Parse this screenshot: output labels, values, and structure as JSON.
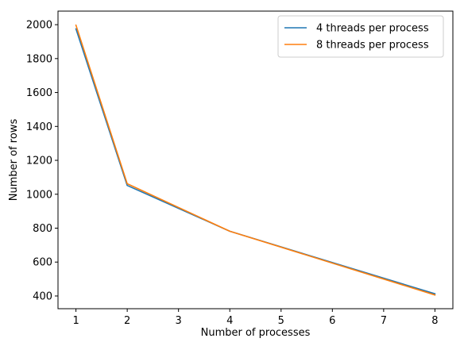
{
  "chart_data": {
    "type": "line",
    "xlabel": "Number of processes",
    "ylabel": "Number of rows",
    "xlim": [
      0.65,
      8.35
    ],
    "ylim": [
      325,
      2080
    ],
    "xticks": [
      1,
      2,
      3,
      4,
      5,
      6,
      7,
      8
    ],
    "yticks": [
      400,
      600,
      800,
      1000,
      1200,
      1400,
      1600,
      1800,
      2000
    ],
    "grid": false,
    "legend_position": "top-right",
    "series": [
      {
        "name": "4 threads per process",
        "color": "#1f77b4",
        "x": [
          1,
          2,
          4,
          8
        ],
        "y": [
          1975,
          1052,
          782,
          413
        ]
      },
      {
        "name": "8 threads per process",
        "color": "#ff7f0e",
        "x": [
          1,
          2,
          4,
          8
        ],
        "y": [
          1997,
          1062,
          782,
          406
        ]
      }
    ]
  }
}
